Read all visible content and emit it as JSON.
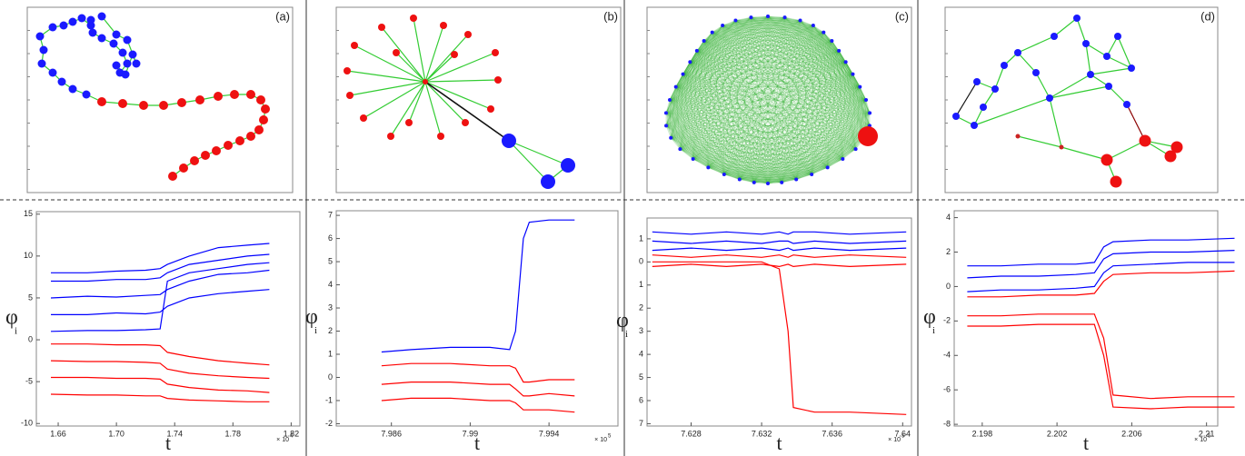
{
  "panels": [
    {
      "label": "(a)"
    },
    {
      "label": "(b)"
    },
    {
      "label": "(c)"
    },
    {
      "label": "(d)"
    }
  ],
  "chart_data": [
    {
      "type": "line",
      "xlabel": "t",
      "ylabel": "φ",
      "ylabel_subscript": "i",
      "x_multiplier_base": "× 10",
      "x_multiplier_exponent": "4",
      "xlim": [
        1.645,
        1.826
      ],
      "ylim": [
        -10.3,
        15.3
      ],
      "xticks": [
        1.66,
        {
          "value": 1.7,
          "label": "1.70"
        },
        1.74,
        1.78,
        1.82
      ],
      "yticks": [
        -10,
        -5,
        0,
        5,
        10,
        15
      ],
      "x": [
        1.655,
        1.68,
        1.7,
        1.72,
        1.73,
        1.735,
        1.75,
        1.77,
        1.79,
        1.805
      ],
      "series": [
        {
          "color": "#0000ff",
          "values": [
            8,
            8,
            8.2,
            8.3,
            8.5,
            9,
            10,
            11,
            11.3,
            11.5
          ]
        },
        {
          "color": "#0000ff",
          "values": [
            7,
            7,
            7.2,
            7.2,
            7.4,
            8,
            9,
            9.5,
            10,
            10.2
          ]
        },
        {
          "color": "#0000ff",
          "values": [
            5,
            5.2,
            5.1,
            5.3,
            5.4,
            6,
            7,
            7.8,
            8,
            8.3
          ]
        },
        {
          "color": "#0000ff",
          "values": [
            3,
            3,
            3.2,
            3.1,
            3.3,
            4,
            5,
            5.5,
            5.8,
            6
          ]
        },
        {
          "color": "#0000ff",
          "values": [
            1,
            1.1,
            1.1,
            1.2,
            1.3,
            7,
            8,
            8.5,
            9,
            9.2
          ]
        },
        {
          "color": "#ff0000",
          "values": [
            -0.5,
            -0.5,
            -0.6,
            -0.6,
            -0.7,
            -1.5,
            -2,
            -2.5,
            -2.8,
            -3
          ]
        },
        {
          "color": "#ff0000",
          "values": [
            -2.5,
            -2.6,
            -2.6,
            -2.7,
            -2.8,
            -3.5,
            -4,
            -4.3,
            -4.5,
            -4.6
          ]
        },
        {
          "color": "#ff0000",
          "values": [
            -4.5,
            -4.5,
            -4.6,
            -4.6,
            -4.7,
            -5.3,
            -5.7,
            -6,
            -6.1,
            -6.3
          ]
        },
        {
          "color": "#ff0000",
          "values": [
            -6.5,
            -6.6,
            -6.6,
            -6.7,
            -6.7,
            -7,
            -7.2,
            -7.3,
            -7.4,
            -7.4
          ]
        }
      ]
    },
    {
      "type": "line",
      "xlabel": "t",
      "ylabel": "φ",
      "ylabel_subscript": "i",
      "x_multiplier_base": "× 10",
      "x_multiplier_exponent": "5",
      "xlim": [
        7.9832,
        7.9975
      ],
      "ylim": [
        -2.1,
        7.2
      ],
      "xticks": [
        7.986,
        7.99,
        7.994
      ],
      "yticks": [
        -2,
        -1,
        0,
        1,
        2,
        3,
        4,
        5,
        6,
        7
      ],
      "x": [
        7.9855,
        7.987,
        7.989,
        7.991,
        7.992,
        7.9923,
        7.9927,
        7.993,
        7.994,
        7.9953
      ],
      "series": [
        {
          "color": "#0000ff",
          "values": [
            1.1,
            1.2,
            1.3,
            1.3,
            1.2,
            2,
            6,
            6.7,
            6.8,
            6.8
          ]
        },
        {
          "color": "#ff0000",
          "values": [
            0.5,
            0.6,
            0.6,
            0.5,
            0.5,
            0.4,
            -0.2,
            -0.2,
            -0.1,
            -0.1
          ]
        },
        {
          "color": "#ff0000",
          "values": [
            -0.3,
            -0.2,
            -0.2,
            -0.3,
            -0.3,
            -0.5,
            -0.8,
            -0.8,
            -0.7,
            -0.8
          ]
        },
        {
          "color": "#ff0000",
          "values": [
            -1,
            -0.9,
            -0.9,
            -1,
            -1,
            -1.1,
            -1.4,
            -1.4,
            -1.4,
            -1.5
          ]
        }
      ]
    },
    {
      "type": "line",
      "xlabel": "t",
      "ylabel": "φ",
      "ylabel_subscript": "i",
      "x_multiplier_base": "× 10",
      "x_multiplier_exponent": "5",
      "xlim": [
        7.6255,
        7.6405
      ],
      "ylim": [
        -7.1,
        1.9
      ],
      "xticks": [
        7.628,
        7.632,
        7.636,
        7.64
      ],
      "yticks": [
        1,
        0,
        {
          "value": -1,
          "label": "1"
        },
        {
          "value": -2,
          "label": "2"
        },
        {
          "value": -3,
          "label": "3"
        },
        {
          "value": -4,
          "label": "4"
        },
        {
          "value": -5,
          "label": "5"
        },
        {
          "value": -6,
          "label": "6"
        },
        {
          "value": -7,
          "label": "7"
        }
      ],
      "x": [
        7.6258,
        7.628,
        7.63,
        7.632,
        7.633,
        7.6335,
        7.6338,
        7.635,
        7.637,
        7.6402
      ],
      "series": [
        {
          "color": "#0000ff",
          "values": [
            1.3,
            1.2,
            1.3,
            1.2,
            1.3,
            1.2,
            1.3,
            1.3,
            1.2,
            1.3
          ]
        },
        {
          "color": "#0000ff",
          "values": [
            0.9,
            0.8,
            0.9,
            0.8,
            0.9,
            0.9,
            0.8,
            0.9,
            0.8,
            0.9
          ]
        },
        {
          "color": "#0000ff",
          "values": [
            0.5,
            0.6,
            0.5,
            0.6,
            0.5,
            0.6,
            0.5,
            0.6,
            0.5,
            0.6
          ]
        },
        {
          "color": "#ff0000",
          "values": [
            0.3,
            0.2,
            0.3,
            0.2,
            0.3,
            0.2,
            0.3,
            0.2,
            0.3,
            0.2
          ]
        },
        {
          "color": "#ff0000",
          "values": [
            -0.2,
            -0.1,
            -0.2,
            -0.1,
            -0.2,
            -0.1,
            -0.2,
            -0.1,
            -0.2,
            -0.1
          ]
        },
        {
          "color": "#ff0000",
          "values": [
            0,
            0,
            0,
            0,
            -0.3,
            -3,
            -6.3,
            -6.5,
            -6.5,
            -6.6
          ]
        }
      ]
    },
    {
      "type": "line",
      "xlabel": "t",
      "ylabel": "φ",
      "ylabel_subscript": "i",
      "x_multiplier_base": "× 10",
      "x_multiplier_exponent": "5",
      "xlim": [
        2.1965,
        2.2106
      ],
      "ylim": [
        -8.1,
        4.4
      ],
      "xticks": [
        2.198,
        2.202,
        2.206,
        2.21
      ],
      "yticks": [
        -8,
        -6,
        -4,
        -2,
        0,
        2,
        4
      ],
      "x": [
        2.1972,
        2.199,
        2.201,
        2.203,
        2.204,
        2.2045,
        2.205,
        2.207,
        2.209,
        2.2115
      ],
      "series": [
        {
          "color": "#0000ff",
          "values": [
            1.2,
            1.2,
            1.3,
            1.3,
            1.4,
            2.3,
            2.6,
            2.7,
            2.7,
            2.8
          ]
        },
        {
          "color": "#0000ff",
          "values": [
            0.5,
            0.6,
            0.6,
            0.7,
            0.8,
            1.6,
            1.9,
            2,
            2,
            2.1
          ]
        },
        {
          "color": "#0000ff",
          "values": [
            -0.3,
            -0.2,
            -0.2,
            -0.1,
            0,
            0.8,
            1.2,
            1.3,
            1.4,
            1.4
          ]
        },
        {
          "color": "#ff0000",
          "values": [
            -0.6,
            -0.6,
            -0.5,
            -0.5,
            -0.4,
            0.3,
            0.7,
            0.8,
            0.8,
            0.9
          ]
        },
        {
          "color": "#ff0000",
          "values": [
            -1.7,
            -1.7,
            -1.6,
            -1.6,
            -1.6,
            -3,
            -6.3,
            -6.5,
            -6.4,
            -6.4
          ]
        },
        {
          "color": "#ff0000",
          "values": [
            -2.3,
            -2.3,
            -2.2,
            -2.2,
            -2.2,
            -4,
            -7,
            -7.1,
            -7,
            -7
          ]
        }
      ]
    }
  ]
}
